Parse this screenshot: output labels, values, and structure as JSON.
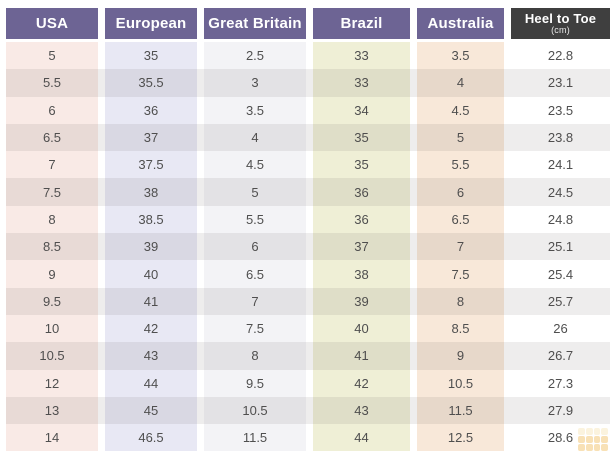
{
  "chart_data": {
    "type": "table",
    "columns": [
      {
        "label": "USA",
        "slug": "usa"
      },
      {
        "label": "European",
        "slug": "european"
      },
      {
        "label": "Great Britain",
        "slug": "great-britain"
      },
      {
        "label": "Brazil",
        "slug": "brazil"
      },
      {
        "label": "Australia",
        "slug": "australia"
      },
      {
        "label": "Heel to Toe",
        "unit": "(cm)",
        "slug": "heel-to-toe"
      }
    ],
    "rows": [
      [
        "5",
        "35",
        "2.5",
        "33",
        "3.5",
        "22.8"
      ],
      [
        "5.5",
        "35.5",
        "3",
        "33",
        "4",
        "23.1"
      ],
      [
        "6",
        "36",
        "3.5",
        "34",
        "4.5",
        "23.5"
      ],
      [
        "6.5",
        "37",
        "4",
        "35",
        "5",
        "23.8"
      ],
      [
        "7",
        "37.5",
        "4.5",
        "35",
        "5.5",
        "24.1"
      ],
      [
        "7.5",
        "38",
        "5",
        "36",
        "6",
        "24.5"
      ],
      [
        "8",
        "38.5",
        "5.5",
        "36",
        "6.5",
        "24.8"
      ],
      [
        "8.5",
        "39",
        "6",
        "37",
        "7",
        "25.1"
      ],
      [
        "9",
        "40",
        "6.5",
        "38",
        "7.5",
        "25.4"
      ],
      [
        "9.5",
        "41",
        "7",
        "39",
        "8",
        "25.7"
      ],
      [
        "10",
        "42",
        "7.5",
        "40",
        "8.5",
        "26"
      ],
      [
        "10.5",
        "43",
        "8",
        "41",
        "9",
        "26.7"
      ],
      [
        "12",
        "44",
        "9.5",
        "42",
        "10.5",
        "27.3"
      ],
      [
        "13",
        "45",
        "10.5",
        "43",
        "11.5",
        "27.9"
      ],
      [
        "14",
        "46.5",
        "11.5",
        "44",
        "12.5",
        "28.6"
      ]
    ]
  },
  "colors": {
    "header_purple": "#6d6494",
    "header_dark": "#3f3f3f",
    "column_backgrounds": [
      "#f9eae6",
      "#e8e8f4",
      "#f3f3f6",
      "#efefd6",
      "#f8e8d9",
      "#ffffff"
    ],
    "stripe_overlay": "rgba(88,74,74,0.10)",
    "body_text": "#4f4f4f",
    "watermark_orange": "#f0b54a",
    "watermark_yellow": "#f6e3ae"
  },
  "icons": {
    "watermark": "grid-logo-icon"
  }
}
